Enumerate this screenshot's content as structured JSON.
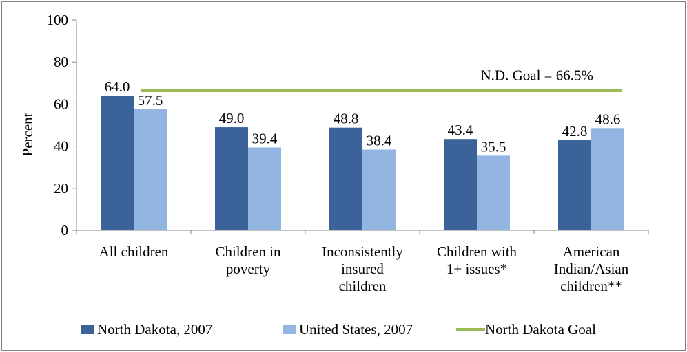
{
  "chart_data": {
    "type": "bar",
    "title": "",
    "xlabel": "",
    "ylabel": "Percent",
    "ylim": [
      0,
      100
    ],
    "yticks": [
      0,
      20,
      40,
      60,
      80,
      100
    ],
    "grid": false,
    "legend_position": "bottom",
    "categories": [
      [
        "All children"
      ],
      [
        "Children in",
        "poverty"
      ],
      [
        "Inconsistently",
        "insured",
        "children"
      ],
      [
        "Children with",
        "1+ issues*"
      ],
      [
        "American",
        "Indian/Asian",
        "children**"
      ]
    ],
    "series": [
      {
        "name": "North Dakota, 2007",
        "color": "#3c6399",
        "values": [
          64.0,
          49.0,
          48.8,
          43.4,
          42.8
        ],
        "labels": [
          "64.0",
          "49.0",
          "48.8",
          "43.4",
          "42.8"
        ]
      },
      {
        "name": "United States, 2007",
        "color": "#93b5e2",
        "values": [
          57.5,
          39.4,
          38.4,
          35.5,
          48.6
        ],
        "labels": [
          "57.5",
          "39.4",
          "38.4",
          "35.5",
          "48.6"
        ]
      }
    ],
    "goal_line": {
      "name": "North Dakota Goal",
      "value": 66.5,
      "color": "#9bbb59",
      "annotation": "N.D. Goal = 66.5%"
    }
  }
}
